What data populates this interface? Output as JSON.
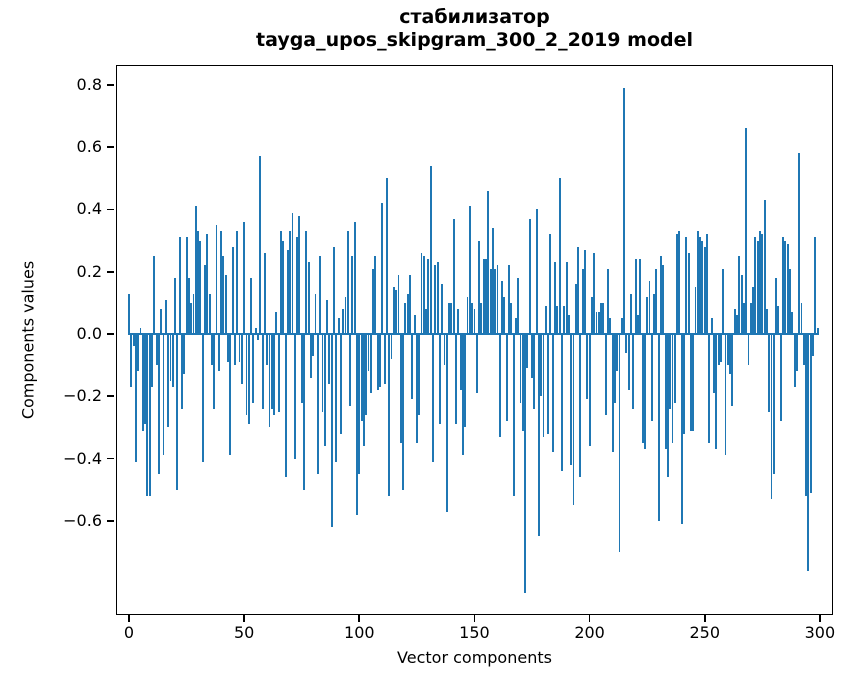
{
  "figure": {
    "title_line1": "стабилизатор",
    "title_line2": "tayga_upos_skipgram_300_2_2019 model",
    "xlabel": "Vector components",
    "ylabel": "Components values"
  },
  "chart_data": {
    "type": "bar",
    "title": "стабилизатор",
    "subtitle": "tayga_upos_skipgram_300_2_2019 model",
    "xlabel": "Vector components",
    "ylabel": "Components values",
    "bar_color": "#1f77b4",
    "text_color": "#000000",
    "background_color": "#ffffff",
    "grid": false,
    "legend_position": "none",
    "x_ticks": [
      0,
      50,
      100,
      150,
      200,
      250,
      300
    ],
    "y_ticks": [
      0.8,
      0.6,
      0.4,
      0.2,
      0.0,
      -0.2,
      -0.4,
      -0.6
    ],
    "xlim": [
      -6,
      306
    ],
    "ylim": [
      -0.91,
      0.87
    ],
    "x_start": 0,
    "values": [
      0.13,
      -0.17,
      -0.04,
      -0.41,
      -0.12,
      0.02,
      -0.31,
      -0.29,
      -0.52,
      -0.52,
      -0.17,
      0.25,
      -0.1,
      -0.45,
      0.08,
      -0.39,
      0.11,
      -0.3,
      -0.15,
      -0.17,
      0.18,
      -0.5,
      0.31,
      -0.24,
      -0.13,
      0.31,
      0.18,
      0.1,
      0.13,
      0.41,
      0.33,
      0.3,
      -0.41,
      0.22,
      0.32,
      0.13,
      -0.1,
      -0.24,
      0.35,
      -0.12,
      0.33,
      0.25,
      0.19,
      -0.09,
      -0.39,
      0.28,
      -0.1,
      0.33,
      -0.09,
      -0.16,
      0.36,
      -0.26,
      -0.29,
      0.18,
      -0.22,
      0.02,
      -0.02,
      0.57,
      -0.24,
      0.26,
      -0.1,
      -0.3,
      -0.24,
      -0.26,
      0.07,
      -0.25,
      0.33,
      0.3,
      -0.46,
      0.27,
      0.33,
      0.39,
      -0.4,
      0.31,
      0.38,
      -0.22,
      -0.5,
      0.33,
      0.23,
      -0.14,
      -0.07,
      0.13,
      -0.45,
      0.25,
      -0.25,
      -0.36,
      0.11,
      -0.16,
      -0.62,
      0.28,
      -0.41,
      0.05,
      -0.32,
      0.08,
      0.12,
      0.33,
      -0.23,
      0.25,
      0.36,
      -0.58,
      -0.45,
      -0.28,
      -0.36,
      -0.26,
      -0.12,
      -0.19,
      0.21,
      0.25,
      -0.18,
      -0.17,
      0.42,
      -0.16,
      0.5,
      -0.52,
      -0.08,
      0.15,
      0.14,
      0.19,
      -0.35,
      -0.5,
      0.1,
      0.13,
      0.19,
      -0.21,
      0.06,
      -0.35,
      -0.26,
      0.26,
      0.25,
      0.08,
      0.24,
      0.54,
      -0.41,
      0.22,
      0.23,
      -0.29,
      0.16,
      -0.1,
      -0.57,
      0.1,
      0.1,
      0.37,
      -0.29,
      0.08,
      -0.18,
      -0.39,
      -0.3,
      0.12,
      0.41,
      0.1,
      0.08,
      -0.19,
      0.3,
      0.1,
      0.24,
      0.24,
      0.46,
      0.21,
      0.34,
      0.21,
      0.22,
      -0.33,
      0.17,
      0.12,
      -0.28,
      0.22,
      0.1,
      -0.52,
      0.05,
      0.18,
      -0.22,
      -0.31,
      -0.83,
      -0.11,
      0.37,
      -0.14,
      -0.24,
      0.4,
      -0.65,
      -0.2,
      -0.33,
      0.09,
      -0.32,
      0.32,
      -0.38,
      0.23,
      0.09,
      0.5,
      -0.44,
      0.09,
      0.23,
      0.06,
      -0.42,
      -0.55,
      0.16,
      0.28,
      -0.46,
      0.21,
      0.27,
      -0.21,
      -0.36,
      0.12,
      0.26,
      0.07,
      0.07,
      0.1,
      0.1,
      -0.26,
      0.21,
      0.05,
      -0.38,
      -0.22,
      -0.12,
      -0.7,
      0.05,
      0.79,
      -0.06,
      -0.18,
      0.13,
      -0.24,
      0.24,
      0.06,
      0.24,
      -0.35,
      -0.37,
      0.12,
      0.17,
      -0.28,
      0.13,
      0.21,
      -0.6,
      0.25,
      0.22,
      -0.37,
      -0.46,
      -0.24,
      -0.35,
      -0.22,
      0.32,
      0.33,
      -0.61,
      -0.32,
      0.31,
      0.26,
      -0.31,
      -0.31,
      0.15,
      0.33,
      0.31,
      0.3,
      0.28,
      0.32,
      -0.35,
      0.05,
      -0.19,
      -0.37,
      -0.1,
      -0.09,
      0.21,
      -0.39,
      -0.1,
      -0.13,
      -0.23,
      0.08,
      0.06,
      0.25,
      0.19,
      0.1,
      0.66,
      -0.1,
      0.1,
      0.15,
      0.31,
      0.3,
      0.33,
      0.32,
      0.43,
      0.08,
      -0.25,
      -0.53,
      -0.45,
      0.18,
      0.09,
      -0.28,
      0.31,
      0.3,
      0.29,
      0.21,
      0.07,
      -0.17,
      -0.12,
      0.58,
      0.1,
      -0.1,
      -0.52,
      -0.76,
      -0.51,
      -0.07,
      0.31,
      0.02
    ]
  }
}
